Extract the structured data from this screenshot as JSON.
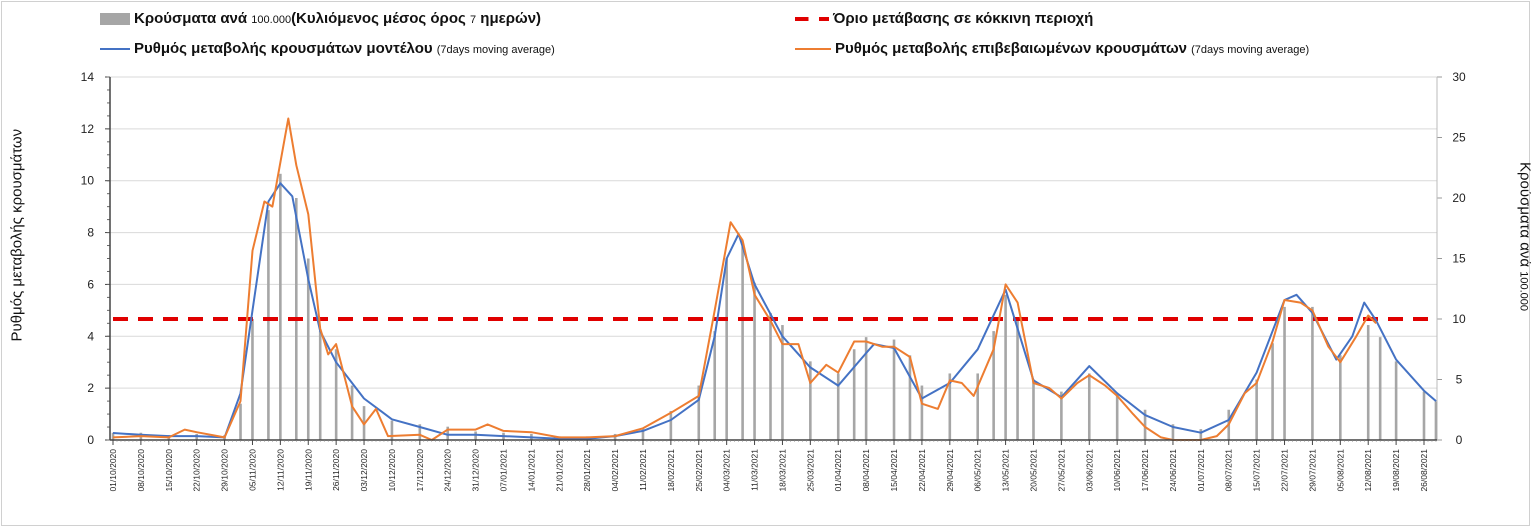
{
  "chart_data": {
    "type": "bar+line",
    "legend": {
      "bars": {
        "main": "Κρούσματα ανά",
        "num": "100.000",
        "rest1": "(Κυλιόμενος μέσος όρος",
        "num2": "7",
        "rest2": "ημερών)"
      },
      "threshold": "Όριο μετάβασης σε κόκκινη περιοχή",
      "model": {
        "main": "Ρυθμός μεταβολής κρουσμάτων μοντέλου",
        "note": "(7days moving average)"
      },
      "confirmed": {
        "main": "Ρυθμός μεταβολής επιβεβαιωμένων κρουσμάτων",
        "note": "(7days moving average)"
      }
    },
    "ylabel_left": "Ρυθμός μεταβολής κρουσμάτων",
    "ylabel_right": {
      "main": "Κρούσματα ανά",
      "num": "100.000"
    },
    "ylim_left": [
      0,
      14
    ],
    "ylim_right": [
      0,
      30
    ],
    "yticks_left": [
      "0",
      "2",
      "4",
      "6",
      "8",
      "10",
      "12",
      "14"
    ],
    "yticks_right": [
      "0",
      "5",
      "10",
      "15",
      "20",
      "25",
      "30"
    ],
    "threshold_right_axis": 10,
    "x_start": "01/10/2020",
    "x_end": "29/08/2021",
    "xticks": [
      "01/10/2020",
      "08/10/2020",
      "15/10/2020",
      "22/10/2020",
      "29/10/2020",
      "05/11/2020",
      "12/11/2020",
      "19/11/2020",
      "26/11/2020",
      "03/12/2020",
      "10/12/2020",
      "17/12/2020",
      "24/12/2020",
      "31/12/2020",
      "07/01/2021",
      "14/01/2021",
      "21/01/2021",
      "28/01/2021",
      "04/02/2021",
      "11/02/2021",
      "18/02/2021",
      "25/02/2021",
      "04/03/2021",
      "11/03/2021",
      "18/03/2021",
      "25/03/2021",
      "01/04/2021",
      "08/04/2021",
      "15/04/2021",
      "22/04/2021",
      "29/04/2021",
      "06/05/2021",
      "13/05/2021",
      "20/05/2021",
      "27/05/2021",
      "03/06/2021",
      "10/06/2021",
      "17/06/2021",
      "24/06/2021",
      "01/07/2021",
      "08/07/2021",
      "15/07/2021",
      "22/07/2021",
      "29/07/2021",
      "05/08/2021",
      "12/08/2021",
      "19/08/2021",
      "26/08/2021"
    ],
    "colors": {
      "bars": "#a6a6a6",
      "model": "#4472c4",
      "confirmed": "#ed7d31",
      "threshold": "#e00000"
    },
    "series": [
      {
        "name": "Κρούσματα ανά 100.000 (bars, right axis)",
        "points": [
          [
            "01/10/2020",
            0.6
          ],
          [
            "08/10/2020",
            0.6
          ],
          [
            "15/10/2020",
            0.4
          ],
          [
            "22/10/2020",
            0.5
          ],
          [
            "29/10/2020",
            0.4
          ],
          [
            "02/11/2020",
            3
          ],
          [
            "05/11/2020",
            10
          ],
          [
            "09/11/2020",
            19
          ],
          [
            "12/11/2020",
            22
          ],
          [
            "16/11/2020",
            20
          ],
          [
            "19/11/2020",
            15
          ],
          [
            "22/11/2020",
            9
          ],
          [
            "26/11/2020",
            7.5
          ],
          [
            "30/11/2020",
            4.5
          ],
          [
            "03/12/2020",
            2.8
          ],
          [
            "10/12/2020",
            1.6
          ],
          [
            "17/12/2020",
            1.3
          ],
          [
            "24/12/2020",
            1.1
          ],
          [
            "31/12/2020",
            0.7
          ],
          [
            "07/01/2021",
            0.6
          ],
          [
            "14/01/2021",
            0.5
          ],
          [
            "21/01/2021",
            0.3
          ],
          [
            "28/01/2021",
            0.3
          ],
          [
            "04/02/2021",
            0.5
          ],
          [
            "11/02/2021",
            1.0
          ],
          [
            "18/02/2021",
            2.4
          ],
          [
            "25/02/2021",
            4.5
          ],
          [
            "01/03/2021",
            9
          ],
          [
            "04/03/2021",
            15
          ],
          [
            "08/03/2021",
            16
          ],
          [
            "11/03/2021",
            13
          ],
          [
            "15/03/2021",
            10.5
          ],
          [
            "18/03/2021",
            9.5
          ],
          [
            "25/03/2021",
            6.5
          ],
          [
            "01/04/2021",
            5.5
          ],
          [
            "05/04/2021",
            7.5
          ],
          [
            "08/04/2021",
            8.5
          ],
          [
            "15/04/2021",
            8.3
          ],
          [
            "19/04/2021",
            7
          ],
          [
            "22/04/2021",
            4.5
          ],
          [
            "29/04/2021",
            5.5
          ],
          [
            "06/05/2021",
            5.5
          ],
          [
            "10/05/2021",
            9
          ],
          [
            "13/05/2021",
            12
          ],
          [
            "16/05/2021",
            10
          ],
          [
            "20/05/2021",
            5
          ],
          [
            "27/05/2021",
            4
          ],
          [
            "03/06/2021",
            5.5
          ],
          [
            "10/06/2021",
            3.8
          ],
          [
            "17/06/2021",
            2.5
          ],
          [
            "24/06/2021",
            1.3
          ],
          [
            "01/07/2021",
            0.9
          ],
          [
            "08/07/2021",
            2.5
          ],
          [
            "15/07/2021",
            5
          ],
          [
            "19/07/2021",
            8
          ],
          [
            "22/07/2021",
            11
          ],
          [
            "29/07/2021",
            11
          ],
          [
            "05/08/2021",
            7
          ],
          [
            "12/08/2021",
            9.5
          ],
          [
            "15/08/2021",
            8.5
          ],
          [
            "19/08/2021",
            6.5
          ],
          [
            "26/08/2021",
            4
          ],
          [
            "29/08/2021",
            3.2
          ]
        ]
      },
      {
        "name": "Ρυθμός μεταβολής κρουσμάτων μοντέλου (left axis)",
        "points": [
          [
            "01/10/2020",
            0.27
          ],
          [
            "08/10/2020",
            0.2
          ],
          [
            "15/10/2020",
            0.15
          ],
          [
            "22/10/2020",
            0.15
          ],
          [
            "29/10/2020",
            0.1
          ],
          [
            "02/11/2020",
            1.8
          ],
          [
            "05/11/2020",
            5.0
          ],
          [
            "09/11/2020",
            9.2
          ],
          [
            "12/11/2020",
            9.9
          ],
          [
            "15/11/2020",
            9.4
          ],
          [
            "19/11/2020",
            6.2
          ],
          [
            "22/11/2020",
            4.2
          ],
          [
            "26/11/2020",
            3.0
          ],
          [
            "03/12/2020",
            1.6
          ],
          [
            "10/12/2020",
            0.8
          ],
          [
            "17/12/2020",
            0.5
          ],
          [
            "24/12/2020",
            0.2
          ],
          [
            "31/12/2020",
            0.2
          ],
          [
            "07/01/2021",
            0.15
          ],
          [
            "14/01/2021",
            0.1
          ],
          [
            "21/01/2021",
            0.05
          ],
          [
            "28/01/2021",
            0.05
          ],
          [
            "04/02/2021",
            0.15
          ],
          [
            "11/02/2021",
            0.35
          ],
          [
            "18/02/2021",
            0.77
          ],
          [
            "25/02/2021",
            1.55
          ],
          [
            "01/03/2021",
            4.0
          ],
          [
            "04/03/2021",
            7.0
          ],
          [
            "07/03/2021",
            7.95
          ],
          [
            "11/03/2021",
            6.0
          ],
          [
            "18/03/2021",
            4.0
          ],
          [
            "25/03/2021",
            2.8
          ],
          [
            "01/04/2021",
            2.1
          ],
          [
            "08/04/2021",
            3.35
          ],
          [
            "10/04/2021",
            3.7
          ],
          [
            "15/04/2021",
            3.55
          ],
          [
            "22/04/2021",
            1.6
          ],
          [
            "29/04/2021",
            2.2
          ],
          [
            "06/05/2021",
            3.5
          ],
          [
            "13/05/2021",
            5.8
          ],
          [
            "20/05/2021",
            2.3
          ],
          [
            "27/05/2021",
            1.65
          ],
          [
            "03/06/2021",
            2.85
          ],
          [
            "10/06/2021",
            1.8
          ],
          [
            "17/06/2021",
            0.96
          ],
          [
            "24/06/2021",
            0.5
          ],
          [
            "01/07/2021",
            0.28
          ],
          [
            "08/07/2021",
            0.77
          ],
          [
            "15/07/2021",
            2.6
          ],
          [
            "22/07/2021",
            5.4
          ],
          [
            "25/07/2021",
            5.6
          ],
          [
            "29/07/2021",
            4.9
          ],
          [
            "04/08/2021",
            3.1
          ],
          [
            "08/08/2021",
            4.0
          ],
          [
            "11/08/2021",
            5.3
          ],
          [
            "14/08/2021",
            4.6
          ],
          [
            "19/08/2021",
            3.1
          ],
          [
            "26/08/2021",
            1.9
          ],
          [
            "29/08/2021",
            1.5
          ]
        ]
      },
      {
        "name": "Ρυθμός μεταβολής επιβεβαιωμένων κρουσμάτων (left axis)",
        "points": [
          [
            "01/10/2020",
            0.1
          ],
          [
            "08/10/2020",
            0.15
          ],
          [
            "15/10/2020",
            0.1
          ],
          [
            "19/10/2020",
            0.4
          ],
          [
            "22/10/2020",
            0.3
          ],
          [
            "29/10/2020",
            0.1
          ],
          [
            "02/11/2020",
            1.5
          ],
          [
            "05/11/2020",
            7.3
          ],
          [
            "08/11/2020",
            9.2
          ],
          [
            "10/11/2020",
            9.0
          ],
          [
            "14/11/2020",
            12.4
          ],
          [
            "16/11/2020",
            10.6
          ],
          [
            "19/11/2020",
            8.7
          ],
          [
            "22/11/2020",
            4.3
          ],
          [
            "24/11/2020",
            3.3
          ],
          [
            "26/11/2020",
            3.7
          ],
          [
            "30/11/2020",
            1.3
          ],
          [
            "03/12/2020",
            0.6
          ],
          [
            "06/12/2020",
            1.2
          ],
          [
            "09/12/2020",
            0.15
          ],
          [
            "17/12/2020",
            0.2
          ],
          [
            "20/12/2020",
            0
          ],
          [
            "24/12/2020",
            0.4
          ],
          [
            "31/12/2020",
            0.4
          ],
          [
            "03/01/2021",
            0.6
          ],
          [
            "07/01/2021",
            0.35
          ],
          [
            "14/01/2021",
            0.3
          ],
          [
            "21/01/2021",
            0.1
          ],
          [
            "28/01/2021",
            0.1
          ],
          [
            "04/02/2021",
            0.15
          ],
          [
            "11/02/2021",
            0.45
          ],
          [
            "18/02/2021",
            1.05
          ],
          [
            "25/02/2021",
            1.7
          ],
          [
            "01/03/2021",
            5.0
          ],
          [
            "05/03/2021",
            8.4
          ],
          [
            "08/03/2021",
            7.7
          ],
          [
            "11/03/2021",
            5.6
          ],
          [
            "15/03/2021",
            4.6
          ],
          [
            "18/03/2021",
            3.7
          ],
          [
            "22/03/2021",
            3.7
          ],
          [
            "25/03/2021",
            2.2
          ],
          [
            "29/03/2021",
            2.9
          ],
          [
            "01/04/2021",
            2.6
          ],
          [
            "05/04/2021",
            3.8
          ],
          [
            "08/04/2021",
            3.8
          ],
          [
            "12/04/2021",
            3.6
          ],
          [
            "15/04/2021",
            3.6
          ],
          [
            "19/04/2021",
            3.2
          ],
          [
            "22/04/2021",
            1.4
          ],
          [
            "26/04/2021",
            1.2
          ],
          [
            "29/04/2021",
            2.3
          ],
          [
            "02/05/2021",
            2.2
          ],
          [
            "05/05/2021",
            1.7
          ],
          [
            "10/05/2021",
            3.5
          ],
          [
            "13/05/2021",
            6.0
          ],
          [
            "16/05/2021",
            5.3
          ],
          [
            "20/05/2021",
            2.2
          ],
          [
            "24/05/2021",
            2.0
          ],
          [
            "27/05/2021",
            1.6
          ],
          [
            "31/05/2021",
            2.2
          ],
          [
            "03/06/2021",
            2.5
          ],
          [
            "07/06/2021",
            2.1
          ],
          [
            "10/06/2021",
            1.7
          ],
          [
            "14/06/2021",
            1.0
          ],
          [
            "17/06/2021",
            0.5
          ],
          [
            "21/06/2021",
            0.1
          ],
          [
            "24/06/2021",
            0
          ],
          [
            "01/07/2021",
            0
          ],
          [
            "05/07/2021",
            0.15
          ],
          [
            "08/07/2021",
            0.6
          ],
          [
            "12/07/2021",
            1.8
          ],
          [
            "15/07/2021",
            2.2
          ],
          [
            "19/07/2021",
            3.8
          ],
          [
            "22/07/2021",
            5.4
          ],
          [
            "26/07/2021",
            5.3
          ],
          [
            "29/07/2021",
            5.0
          ],
          [
            "02/08/2021",
            3.6
          ],
          [
            "05/08/2021",
            3.0
          ],
          [
            "09/08/2021",
            4.0
          ],
          [
            "12/08/2021",
            4.8
          ],
          [
            "14/08/2021",
            4.5
          ]
        ]
      }
    ]
  }
}
